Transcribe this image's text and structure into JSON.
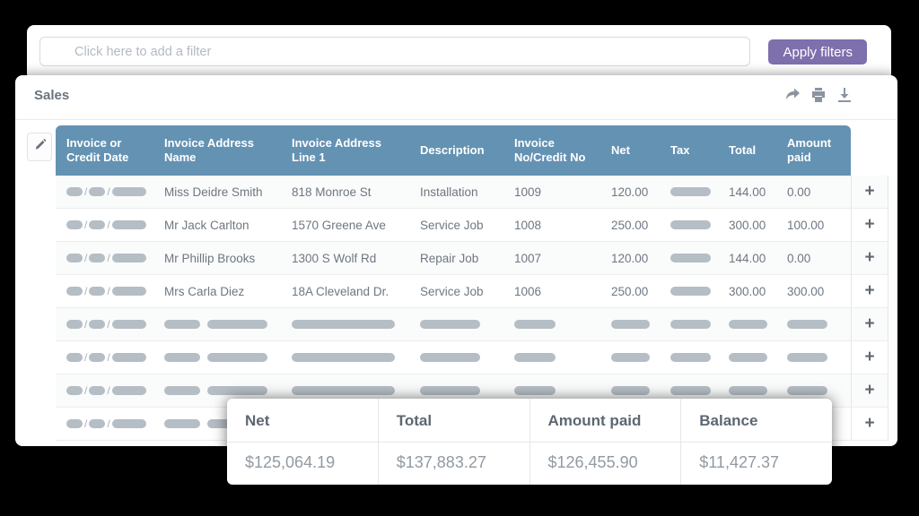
{
  "filter_bar": {
    "placeholder": "Click here to add a filter",
    "apply_button": "Apply filters"
  },
  "panel": {
    "title": "Sales"
  },
  "icons": {
    "funnel": "funnel-icon",
    "share": "share-icon",
    "print": "print-icon",
    "download": "download-icon",
    "edit": "pencil-icon",
    "add_row": "+"
  },
  "table": {
    "columns": [
      "Invoice or Credit Date",
      "Invoice Address Name",
      "Invoice Address Line 1",
      "Description",
      "Invoice No/Credit No",
      "Net",
      "Tax",
      "Total",
      "Amount paid"
    ],
    "rows": [
      {
        "date": null,
        "name": "Miss Deidre Smith",
        "address": "818 Monroe St",
        "description": "Installation",
        "invoice_no": "1009",
        "net": "120.00",
        "tax": null,
        "total": "144.00",
        "amount_paid": "0.00"
      },
      {
        "date": null,
        "name": "Mr Jack Carlton",
        "address": "1570 Greene Ave",
        "description": "Service Job",
        "invoice_no": "1008",
        "net": "250.00",
        "tax": null,
        "total": "300.00",
        "amount_paid": "100.00"
      },
      {
        "date": null,
        "name": "Mr Phillip Brooks",
        "address": "1300 S Wolf Rd",
        "description": "Repair Job",
        "invoice_no": "1007",
        "net": "120.00",
        "tax": null,
        "total": "144.00",
        "amount_paid": "0.00"
      },
      {
        "date": null,
        "name": "Mrs Carla Diez",
        "address": "18A Cleveland Dr.",
        "description": "Service Job",
        "invoice_no": "1006",
        "net": "250.00",
        "tax": null,
        "total": "300.00",
        "amount_paid": "300.00"
      },
      {
        "date": null,
        "name": null,
        "address": null,
        "description": null,
        "invoice_no": null,
        "net": null,
        "tax": null,
        "total": null,
        "amount_paid": null
      },
      {
        "date": null,
        "name": null,
        "address": null,
        "description": null,
        "invoice_no": null,
        "net": null,
        "tax": null,
        "total": null,
        "amount_paid": null
      },
      {
        "date": null,
        "name": null,
        "address": null,
        "description": null,
        "invoice_no": null,
        "net": null,
        "tax": null,
        "total": null,
        "amount_paid": null
      },
      {
        "date": null,
        "name": null,
        "address": null,
        "description": null,
        "invoice_no": null,
        "net": null,
        "tax": null,
        "total": null,
        "amount_paid": null
      }
    ]
  },
  "summary": {
    "columns": [
      {
        "label": "Net",
        "value": "$125,064.19"
      },
      {
        "label": "Total",
        "value": "$137,883.27"
      },
      {
        "label": "Amount paid",
        "value": "$126,455.90"
      },
      {
        "label": "Balance",
        "value": "$11,427.37"
      }
    ]
  },
  "colors": {
    "header_blue": "#6492b3",
    "accent_purple": "#7e6fad",
    "pill_gray": "#b5bdc5",
    "background": "#000000"
  }
}
